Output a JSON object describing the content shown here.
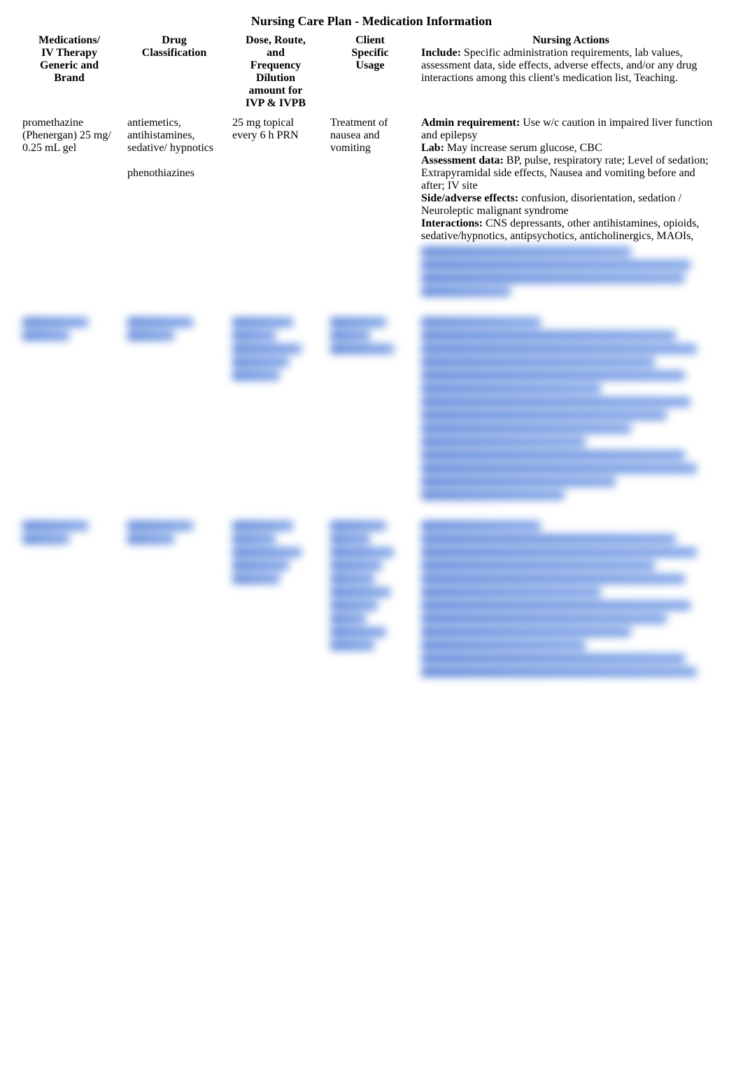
{
  "title": "Nursing Care Plan - Medication Information",
  "columns": {
    "medications": "Medications/\nIV Therapy\nGeneric and\nBrand",
    "classification": "Drug\nClassification",
    "dose": "Dose, Route,\nand\nFrequency\nDilution\namount for\nIVP & IVPB",
    "usage": "Client\nSpecific\nUsage",
    "actions_header": "Nursing Actions",
    "actions_sub": "Include: Specific administration requirements, lab values, assessment data, side effects, adverse effects, and/or any drug interactions among this client's medication list, Teaching.",
    "actions_sub_bold_prefix": "Include:"
  },
  "rows": [
    {
      "medication": "promethazine (Phenergan) 25 mg/ 0.25 mL gel",
      "classification": "antiemetics, antihistamines, sedative/ hypnotics\n\nphenothiazines",
      "dose": "25 mg topical every 6 h PRN",
      "usage": "Treatment of nausea and vomiting",
      "actions": [
        {
          "label": "Admin requirement:",
          "text": " Use w/c caution in impaired liver function and epilepsy"
        },
        {
          "label": "Lab:",
          "text": " May increase serum glucose, CBC"
        },
        {
          "label": "Assessment data:",
          "text": " BP, pulse, respiratory rate; Level of sedation; Extrapyramidal side effects, Nausea and vomiting before and after; IV site"
        },
        {
          "label": "Side/adverse effects:",
          "text": " confusion, disorientation, sedation / Neuroleptic malignant syndrome"
        },
        {
          "label": "Interactions:",
          "text": " CNS depressants, other antihistamines, opioids, sedative/hypnotics, antipsychotics, anticholinergics, MAOIs,"
        }
      ]
    }
  ],
  "blur": {
    "color": "#3a6fd8",
    "row1_trailing_lines": 4,
    "hidden_rows": [
      {
        "col_lines": [
          2,
          2,
          5,
          3,
          14
        ]
      },
      {
        "col_lines": [
          2,
          2,
          5,
          10,
          12
        ]
      }
    ]
  },
  "page_bg": "#ffffff"
}
